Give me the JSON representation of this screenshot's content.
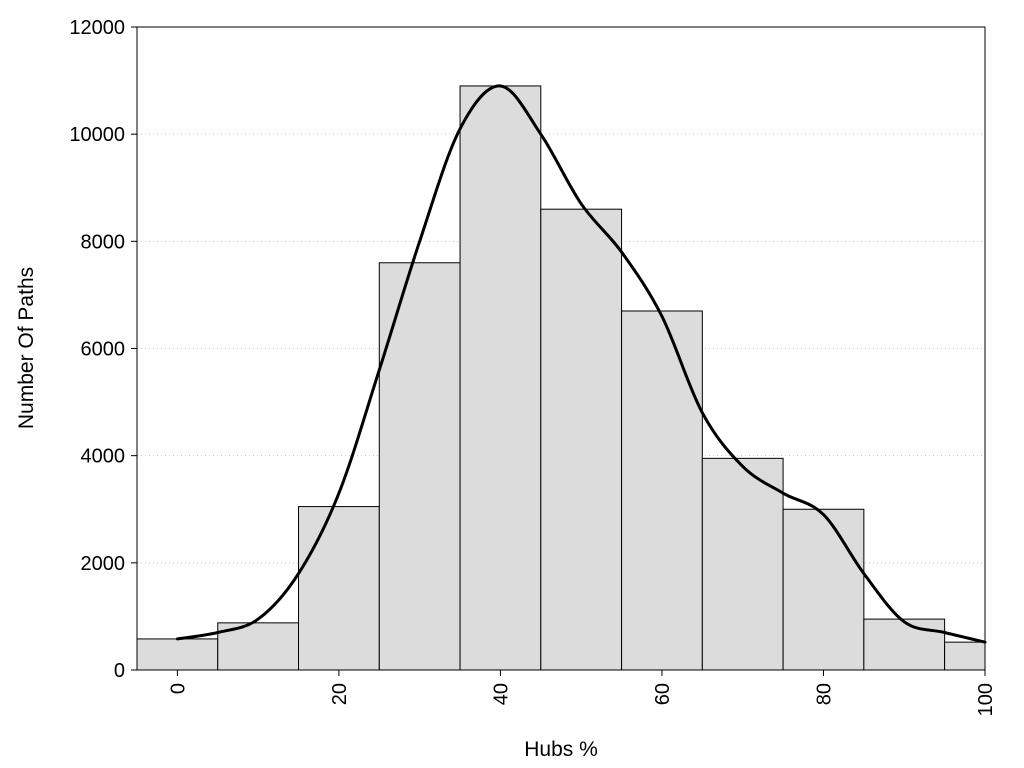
{
  "chart_data": {
    "type": "bar",
    "xlabel": "Hubs %",
    "ylabel": "Number Of Paths",
    "xlim": [
      -5,
      100
    ],
    "ylim": [
      0,
      12000
    ],
    "x_ticks": [
      0,
      20,
      40,
      60,
      80,
      100
    ],
    "y_ticks": [
      0,
      2000,
      4000,
      6000,
      8000,
      10000,
      12000
    ],
    "grid": "horizontal dotted",
    "bars": {
      "bin_width": 10,
      "x": [
        0,
        10,
        20,
        30,
        40,
        50,
        60,
        70,
        80,
        90,
        100
      ],
      "values": [
        580,
        880,
        3050,
        7600,
        10900,
        8600,
        6700,
        3950,
        3000,
        950,
        520
      ]
    },
    "curve": {
      "x": [
        0,
        5,
        10,
        15,
        20,
        25,
        30,
        35,
        40,
        45,
        50,
        55,
        60,
        65,
        70,
        75,
        80,
        85,
        90,
        95,
        100
      ],
      "y": [
        580,
        700,
        950,
        1800,
        3300,
        5600,
        8000,
        10100,
        10900,
        10000,
        8700,
        7800,
        6600,
        4800,
        3800,
        3300,
        2900,
        1800,
        900,
        700,
        520
      ]
    },
    "colors": {
      "bar_fill": "#dcdcdc",
      "bar_stroke": "#000000",
      "curve": "#000000",
      "grid": "#c8c8c8"
    }
  }
}
